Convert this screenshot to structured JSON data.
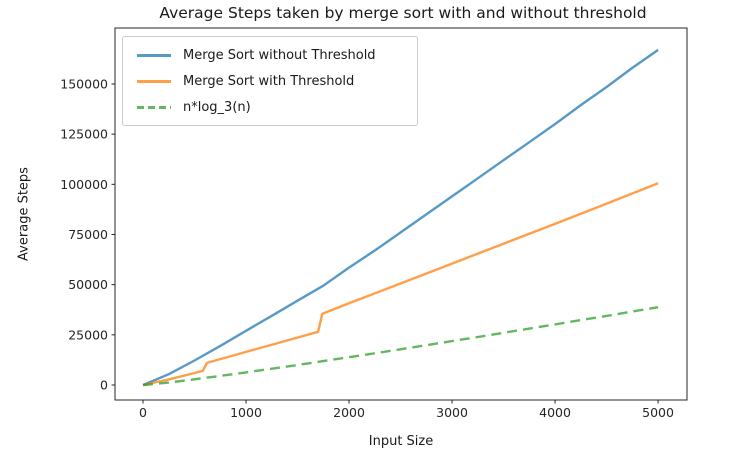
{
  "chart_data": {
    "type": "line",
    "title": "Average Steps taken by merge sort with and without threshold",
    "xlabel": "Input Size",
    "ylabel": "Average Steps",
    "xlim": [
      -272,
      5281
    ],
    "ylim": [
      -7475,
      177900
    ],
    "x_ticks": [
      0,
      1000,
      2000,
      3000,
      4000,
      5000
    ],
    "y_ticks": [
      0,
      25000,
      50000,
      75000,
      100000,
      125000,
      150000
    ],
    "grid": false,
    "legend_position": "upper left",
    "line_colors": {
      "blue": "#1f77b4",
      "orange": "#ff7f0e",
      "green": "#2ca02c"
    },
    "series": [
      {
        "name": "Merge Sort without Threshold",
        "color": "#1f77b4",
        "style": "solid",
        "points": [
          [
            0,
            0
          ],
          [
            250,
            5400
          ],
          [
            500,
            12200
          ],
          [
            750,
            19500
          ],
          [
            1000,
            27000
          ],
          [
            1250,
            34500
          ],
          [
            1500,
            42000
          ],
          [
            1750,
            49500
          ],
          [
            2000,
            58500
          ],
          [
            2250,
            67000
          ],
          [
            2500,
            76000
          ],
          [
            2750,
            85000
          ],
          [
            3000,
            94000
          ],
          [
            3250,
            103000
          ],
          [
            3500,
            112000
          ],
          [
            3750,
            121000
          ],
          [
            4000,
            130000
          ],
          [
            4250,
            139500
          ],
          [
            4500,
            148500
          ],
          [
            4750,
            158000
          ],
          [
            5000,
            167000
          ]
        ]
      },
      {
        "name": "Merge Sort with Threshold",
        "color": "#ff7f0e",
        "style": "solid",
        "points": [
          [
            0,
            0
          ],
          [
            250,
            2800
          ],
          [
            500,
            6000
          ],
          [
            580,
            7100
          ],
          [
            620,
            11000
          ],
          [
            1000,
            16500
          ],
          [
            1350,
            21500
          ],
          [
            1700,
            26500
          ],
          [
            1740,
            35500
          ],
          [
            2000,
            40700
          ],
          [
            2500,
            50600
          ],
          [
            3000,
            60500
          ],
          [
            3500,
            70400
          ],
          [
            4000,
            80300
          ],
          [
            4500,
            90400
          ],
          [
            5000,
            100500
          ]
        ]
      },
      {
        "name": "n*log_3(n)",
        "color": "#2ca02c",
        "style": "dashed",
        "points": [
          [
            0,
            0
          ],
          [
            250,
            1256
          ],
          [
            500,
            2829
          ],
          [
            750,
            4519
          ],
          [
            1000,
            6288
          ],
          [
            1250,
            8114
          ],
          [
            1500,
            9985
          ],
          [
            1750,
            11895
          ],
          [
            2000,
            13838
          ],
          [
            2250,
            15806
          ],
          [
            2500,
            17805
          ],
          [
            2750,
            19824
          ],
          [
            3000,
            21862
          ],
          [
            3250,
            23919
          ],
          [
            3500,
            25998
          ],
          [
            3750,
            28088
          ],
          [
            4000,
            30198
          ],
          [
            4250,
            32319
          ],
          [
            4500,
            34455
          ],
          [
            4750,
            36604
          ],
          [
            5000,
            38762
          ]
        ]
      }
    ]
  }
}
